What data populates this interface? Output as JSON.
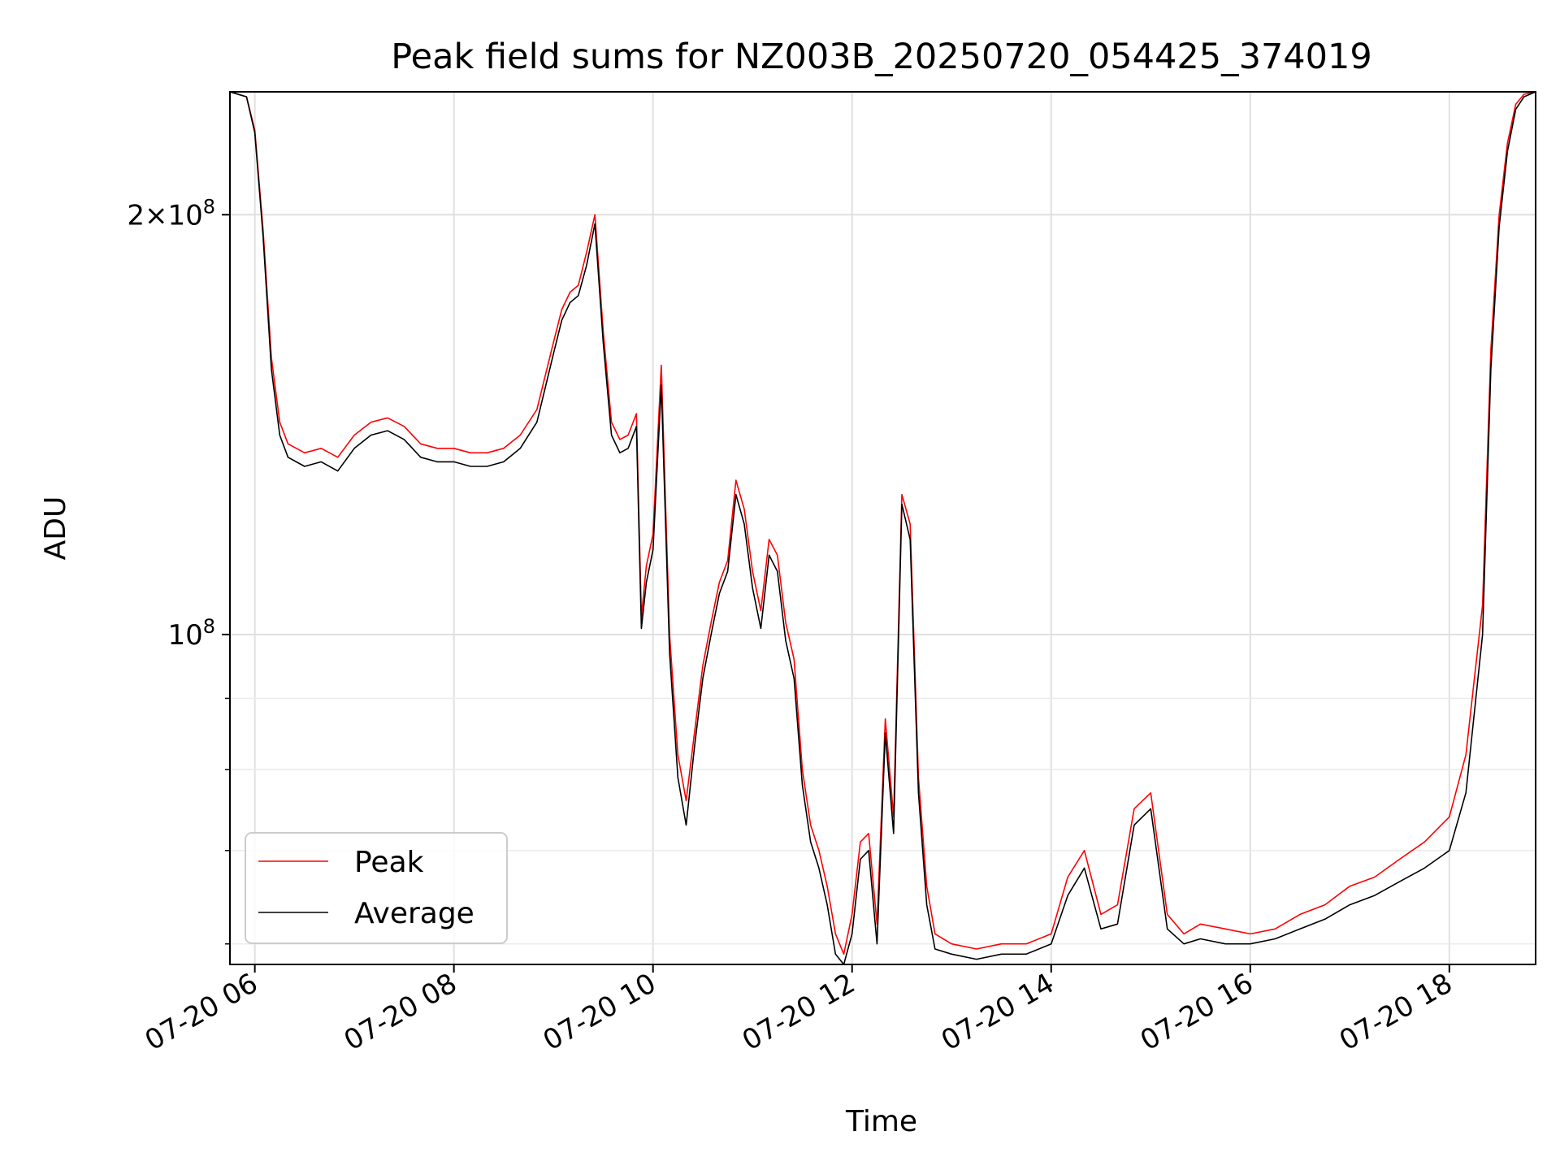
{
  "chart_data": {
    "type": "line",
    "title": "Peak field sums for NZ003B_20250720_054425_374019",
    "xlabel": "Time",
    "ylabel": "ADU",
    "yscale": "log",
    "ylim": [
      58000000,
      245000000
    ],
    "xlim": [
      "07-20 05:45",
      "07-20 18:52"
    ],
    "x_ticks": [
      "07-20 06",
      "07-20 08",
      "07-20 10",
      "07-20 12",
      "07-20 14",
      "07-20 16",
      "07-20 18"
    ],
    "y_major_ticks": [
      {
        "value": 100000000,
        "base": "10",
        "exp": "8",
        "mantissa": ""
      },
      {
        "value": 200000000,
        "base": "10",
        "exp": "8",
        "mantissa": "2"
      }
    ],
    "y_minor_ticks": [
      60000000,
      70000000,
      80000000,
      90000000
    ],
    "grid": true,
    "legend_position": "lower-left",
    "series": [
      {
        "name": "Peak",
        "color": "#ff0000",
        "x": [
          "07-20 05:45",
          "07-20 05:55",
          "07-20 06:00",
          "07-20 06:05",
          "07-20 06:10",
          "07-20 06:15",
          "07-20 06:20",
          "07-20 06:30",
          "07-20 06:40",
          "07-20 06:50",
          "07-20 07:00",
          "07-20 07:10",
          "07-20 07:20",
          "07-20 07:30",
          "07-20 07:40",
          "07-20 07:50",
          "07-20 08:00",
          "07-20 08:10",
          "07-20 08:20",
          "07-20 08:30",
          "07-20 08:40",
          "07-20 08:50",
          "07-20 09:00",
          "07-20 09:05",
          "07-20 09:10",
          "07-20 09:15",
          "07-20 09:20",
          "07-20 09:25",
          "07-20 09:30",
          "07-20 09:35",
          "07-20 09:40",
          "07-20 09:45",
          "07-20 09:50",
          "07-20 09:53",
          "07-20 09:56",
          "07-20 10:00",
          "07-20 10:05",
          "07-20 10:10",
          "07-20 10:15",
          "07-20 10:20",
          "07-20 10:25",
          "07-20 10:30",
          "07-20 10:35",
          "07-20 10:40",
          "07-20 10:45",
          "07-20 10:50",
          "07-20 10:55",
          "07-20 11:00",
          "07-20 11:05",
          "07-20 11:10",
          "07-20 11:15",
          "07-20 11:20",
          "07-20 11:25",
          "07-20 11:30",
          "07-20 11:35",
          "07-20 11:40",
          "07-20 11:45",
          "07-20 11:50",
          "07-20 11:55",
          "07-20 12:00",
          "07-20 12:05",
          "07-20 12:10",
          "07-20 12:15",
          "07-20 12:20",
          "07-20 12:25",
          "07-20 12:30",
          "07-20 12:35",
          "07-20 12:40",
          "07-20 12:45",
          "07-20 12:50",
          "07-20 13:00",
          "07-20 13:15",
          "07-20 13:30",
          "07-20 13:45",
          "07-20 14:00",
          "07-20 14:10",
          "07-20 14:20",
          "07-20 14:30",
          "07-20 14:40",
          "07-20 14:50",
          "07-20 15:00",
          "07-20 15:10",
          "07-20 15:20",
          "07-20 15:30",
          "07-20 15:45",
          "07-20 16:00",
          "07-20 16:15",
          "07-20 16:30",
          "07-20 16:45",
          "07-20 17:00",
          "07-20 17:15",
          "07-20 17:30",
          "07-20 17:45",
          "07-20 18:00",
          "07-20 18:10",
          "07-20 18:20",
          "07-20 18:25",
          "07-20 18:30",
          "07-20 18:35",
          "07-20 18:40",
          "07-20 18:45",
          "07-20 18:52"
        ],
        "values": [
          245000000,
          243000000,
          230000000,
          195000000,
          158000000,
          142000000,
          137000000,
          135000000,
          136000000,
          134000000,
          139000000,
          142000000,
          143000000,
          141000000,
          137000000,
          136000000,
          136000000,
          135000000,
          135000000,
          136000000,
          139000000,
          145000000,
          162000000,
          171000000,
          176000000,
          178000000,
          188000000,
          200000000,
          165000000,
          142000000,
          138000000,
          139000000,
          144000000,
          103000000,
          112000000,
          118000000,
          156000000,
          100000000,
          82000000,
          76000000,
          85000000,
          95000000,
          102000000,
          109000000,
          113000000,
          129000000,
          123000000,
          111000000,
          104000000,
          117000000,
          114000000,
          102000000,
          96000000,
          80000000,
          73000000,
          70000000,
          66000000,
          61000000,
          59000000,
          63000000,
          71000000,
          72000000,
          62000000,
          87000000,
          74000000,
          126000000,
          120000000,
          79000000,
          66000000,
          61000000,
          60000000,
          59500000,
          60000000,
          60000000,
          61000000,
          67000000,
          70000000,
          63000000,
          64000000,
          75000000,
          77000000,
          63000000,
          61000000,
          62000000,
          61500000,
          61000000,
          61500000,
          63000000,
          64000000,
          66000000,
          67000000,
          69000000,
          71000000,
          74000000,
          82000000,
          105000000,
          160000000,
          200000000,
          225000000,
          240000000,
          244000000,
          245000000
        ]
      },
      {
        "name": "Average",
        "color": "#000000",
        "x": [
          "07-20 05:45",
          "07-20 05:55",
          "07-20 06:00",
          "07-20 06:05",
          "07-20 06:10",
          "07-20 06:15",
          "07-20 06:20",
          "07-20 06:30",
          "07-20 06:40",
          "07-20 06:50",
          "07-20 07:00",
          "07-20 07:10",
          "07-20 07:20",
          "07-20 07:30",
          "07-20 07:40",
          "07-20 07:50",
          "07-20 08:00",
          "07-20 08:10",
          "07-20 08:20",
          "07-20 08:30",
          "07-20 08:40",
          "07-20 08:50",
          "07-20 09:00",
          "07-20 09:05",
          "07-20 09:10",
          "07-20 09:15",
          "07-20 09:20",
          "07-20 09:25",
          "07-20 09:30",
          "07-20 09:35",
          "07-20 09:40",
          "07-20 09:45",
          "07-20 09:50",
          "07-20 09:53",
          "07-20 09:56",
          "07-20 10:00",
          "07-20 10:05",
          "07-20 10:10",
          "07-20 10:15",
          "07-20 10:20",
          "07-20 10:25",
          "07-20 10:30",
          "07-20 10:35",
          "07-20 10:40",
          "07-20 10:45",
          "07-20 10:50",
          "07-20 10:55",
          "07-20 11:00",
          "07-20 11:05",
          "07-20 11:10",
          "07-20 11:15",
          "07-20 11:20",
          "07-20 11:25",
          "07-20 11:30",
          "07-20 11:35",
          "07-20 11:40",
          "07-20 11:45",
          "07-20 11:50",
          "07-20 11:55",
          "07-20 12:00",
          "07-20 12:05",
          "07-20 12:10",
          "07-20 12:15",
          "07-20 12:20",
          "07-20 12:25",
          "07-20 12:30",
          "07-20 12:35",
          "07-20 12:40",
          "07-20 12:45",
          "07-20 12:50",
          "07-20 13:00",
          "07-20 13:15",
          "07-20 13:30",
          "07-20 13:45",
          "07-20 14:00",
          "07-20 14:10",
          "07-20 14:20",
          "07-20 14:30",
          "07-20 14:40",
          "07-20 14:50",
          "07-20 15:00",
          "07-20 15:10",
          "07-20 15:20",
          "07-20 15:30",
          "07-20 15:45",
          "07-20 16:00",
          "07-20 16:15",
          "07-20 16:30",
          "07-20 16:45",
          "07-20 17:00",
          "07-20 17:15",
          "07-20 17:30",
          "07-20 17:45",
          "07-20 18:00",
          "07-20 18:10",
          "07-20 18:20",
          "07-20 18:25",
          "07-20 18:30",
          "07-20 18:35",
          "07-20 18:40",
          "07-20 18:45",
          "07-20 18:52"
        ],
        "values": [
          245000000,
          243000000,
          229000000,
          193000000,
          155000000,
          139000000,
          134000000,
          132000000,
          133000000,
          131000000,
          136000000,
          139000000,
          140000000,
          138000000,
          134000000,
          133000000,
          133000000,
          132000000,
          132000000,
          133000000,
          136000000,
          142000000,
          159000000,
          168000000,
          173000000,
          175000000,
          184000000,
          197000000,
          162000000,
          139000000,
          135000000,
          136000000,
          141000000,
          101000000,
          109000000,
          115000000,
          151000000,
          97000000,
          79000000,
          73000000,
          83000000,
          93000000,
          100000000,
          107000000,
          111000000,
          126000000,
          120000000,
          108000000,
          101000000,
          114000000,
          111000000,
          99000000,
          93000000,
          78000000,
          71000000,
          68000000,
          64000000,
          59000000,
          58000000,
          61000000,
          69000000,
          70000000,
          60000000,
          85000000,
          72000000,
          124000000,
          117000000,
          77000000,
          64000000,
          59500000,
          59000000,
          58500000,
          59000000,
          59000000,
          60000000,
          65000000,
          68000000,
          61500000,
          62000000,
          73000000,
          75000000,
          61500000,
          60000000,
          60500000,
          60000000,
          60000000,
          60500000,
          61500000,
          62500000,
          64000000,
          65000000,
          66500000,
          68000000,
          70000000,
          77000000,
          100000000,
          155000000,
          196000000,
          222000000,
          238000000,
          243000000,
          245000000
        ]
      }
    ]
  }
}
